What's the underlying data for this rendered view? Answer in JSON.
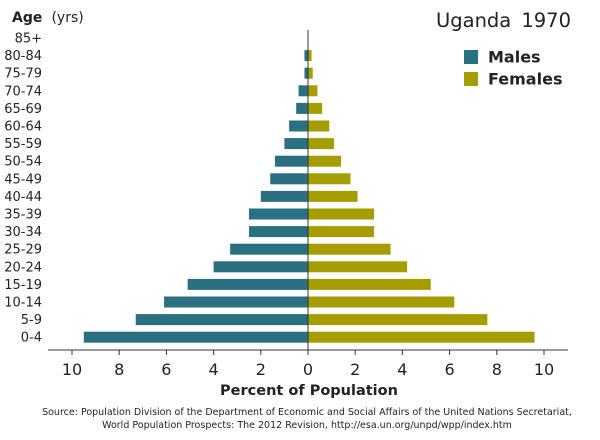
{
  "chart_data": {
    "type": "bar",
    "orientation": "horizontal-population-pyramid",
    "title": "Uganda",
    "title_year": "1970",
    "ylabel": "Age",
    "ylabel_unit": "(yrs)",
    "xlabel": "Percent of Population",
    "categories": [
      "85+",
      "80-84",
      "75-79",
      "70-74",
      "65-69",
      "60-64",
      "55-59",
      "50-54",
      "45-49",
      "40-44",
      "35-39",
      "30-34",
      "25-29",
      "20-24",
      "15-19",
      "10-14",
      "5-9",
      "0-4"
    ],
    "series": [
      {
        "name": "Males",
        "color": "#2b7080",
        "values": [
          0.0,
          0.15,
          0.15,
          0.4,
          0.5,
          0.8,
          1.0,
          1.4,
          1.6,
          2.0,
          2.5,
          2.5,
          3.3,
          4.0,
          5.1,
          6.1,
          7.3,
          9.5
        ]
      },
      {
        "name": "Females",
        "color": "#a59d00",
        "values": [
          0.0,
          0.15,
          0.2,
          0.4,
          0.6,
          0.9,
          1.1,
          1.4,
          1.8,
          2.1,
          2.8,
          2.8,
          3.5,
          4.2,
          5.2,
          6.2,
          7.6,
          9.6
        ]
      }
    ],
    "xlim": [
      -10,
      10
    ],
    "x_ticks": [
      -10,
      -8,
      -6,
      -4,
      -2,
      0,
      2,
      4,
      6,
      8,
      10
    ],
    "x_tick_labels": [
      "10",
      "8",
      "6",
      "4",
      "2",
      "0",
      "2",
      "4",
      "6",
      "8",
      "10"
    ],
    "legend_position": "top-right",
    "grid": false
  },
  "source": {
    "line1": "Source: Population Division of the Department of Economic and Social Affairs of the United Nations Secretariat,",
    "line2": "World Population Prospects: The 2012 Revision, http://esa.un.org/unpd/wpp/index.htm"
  }
}
